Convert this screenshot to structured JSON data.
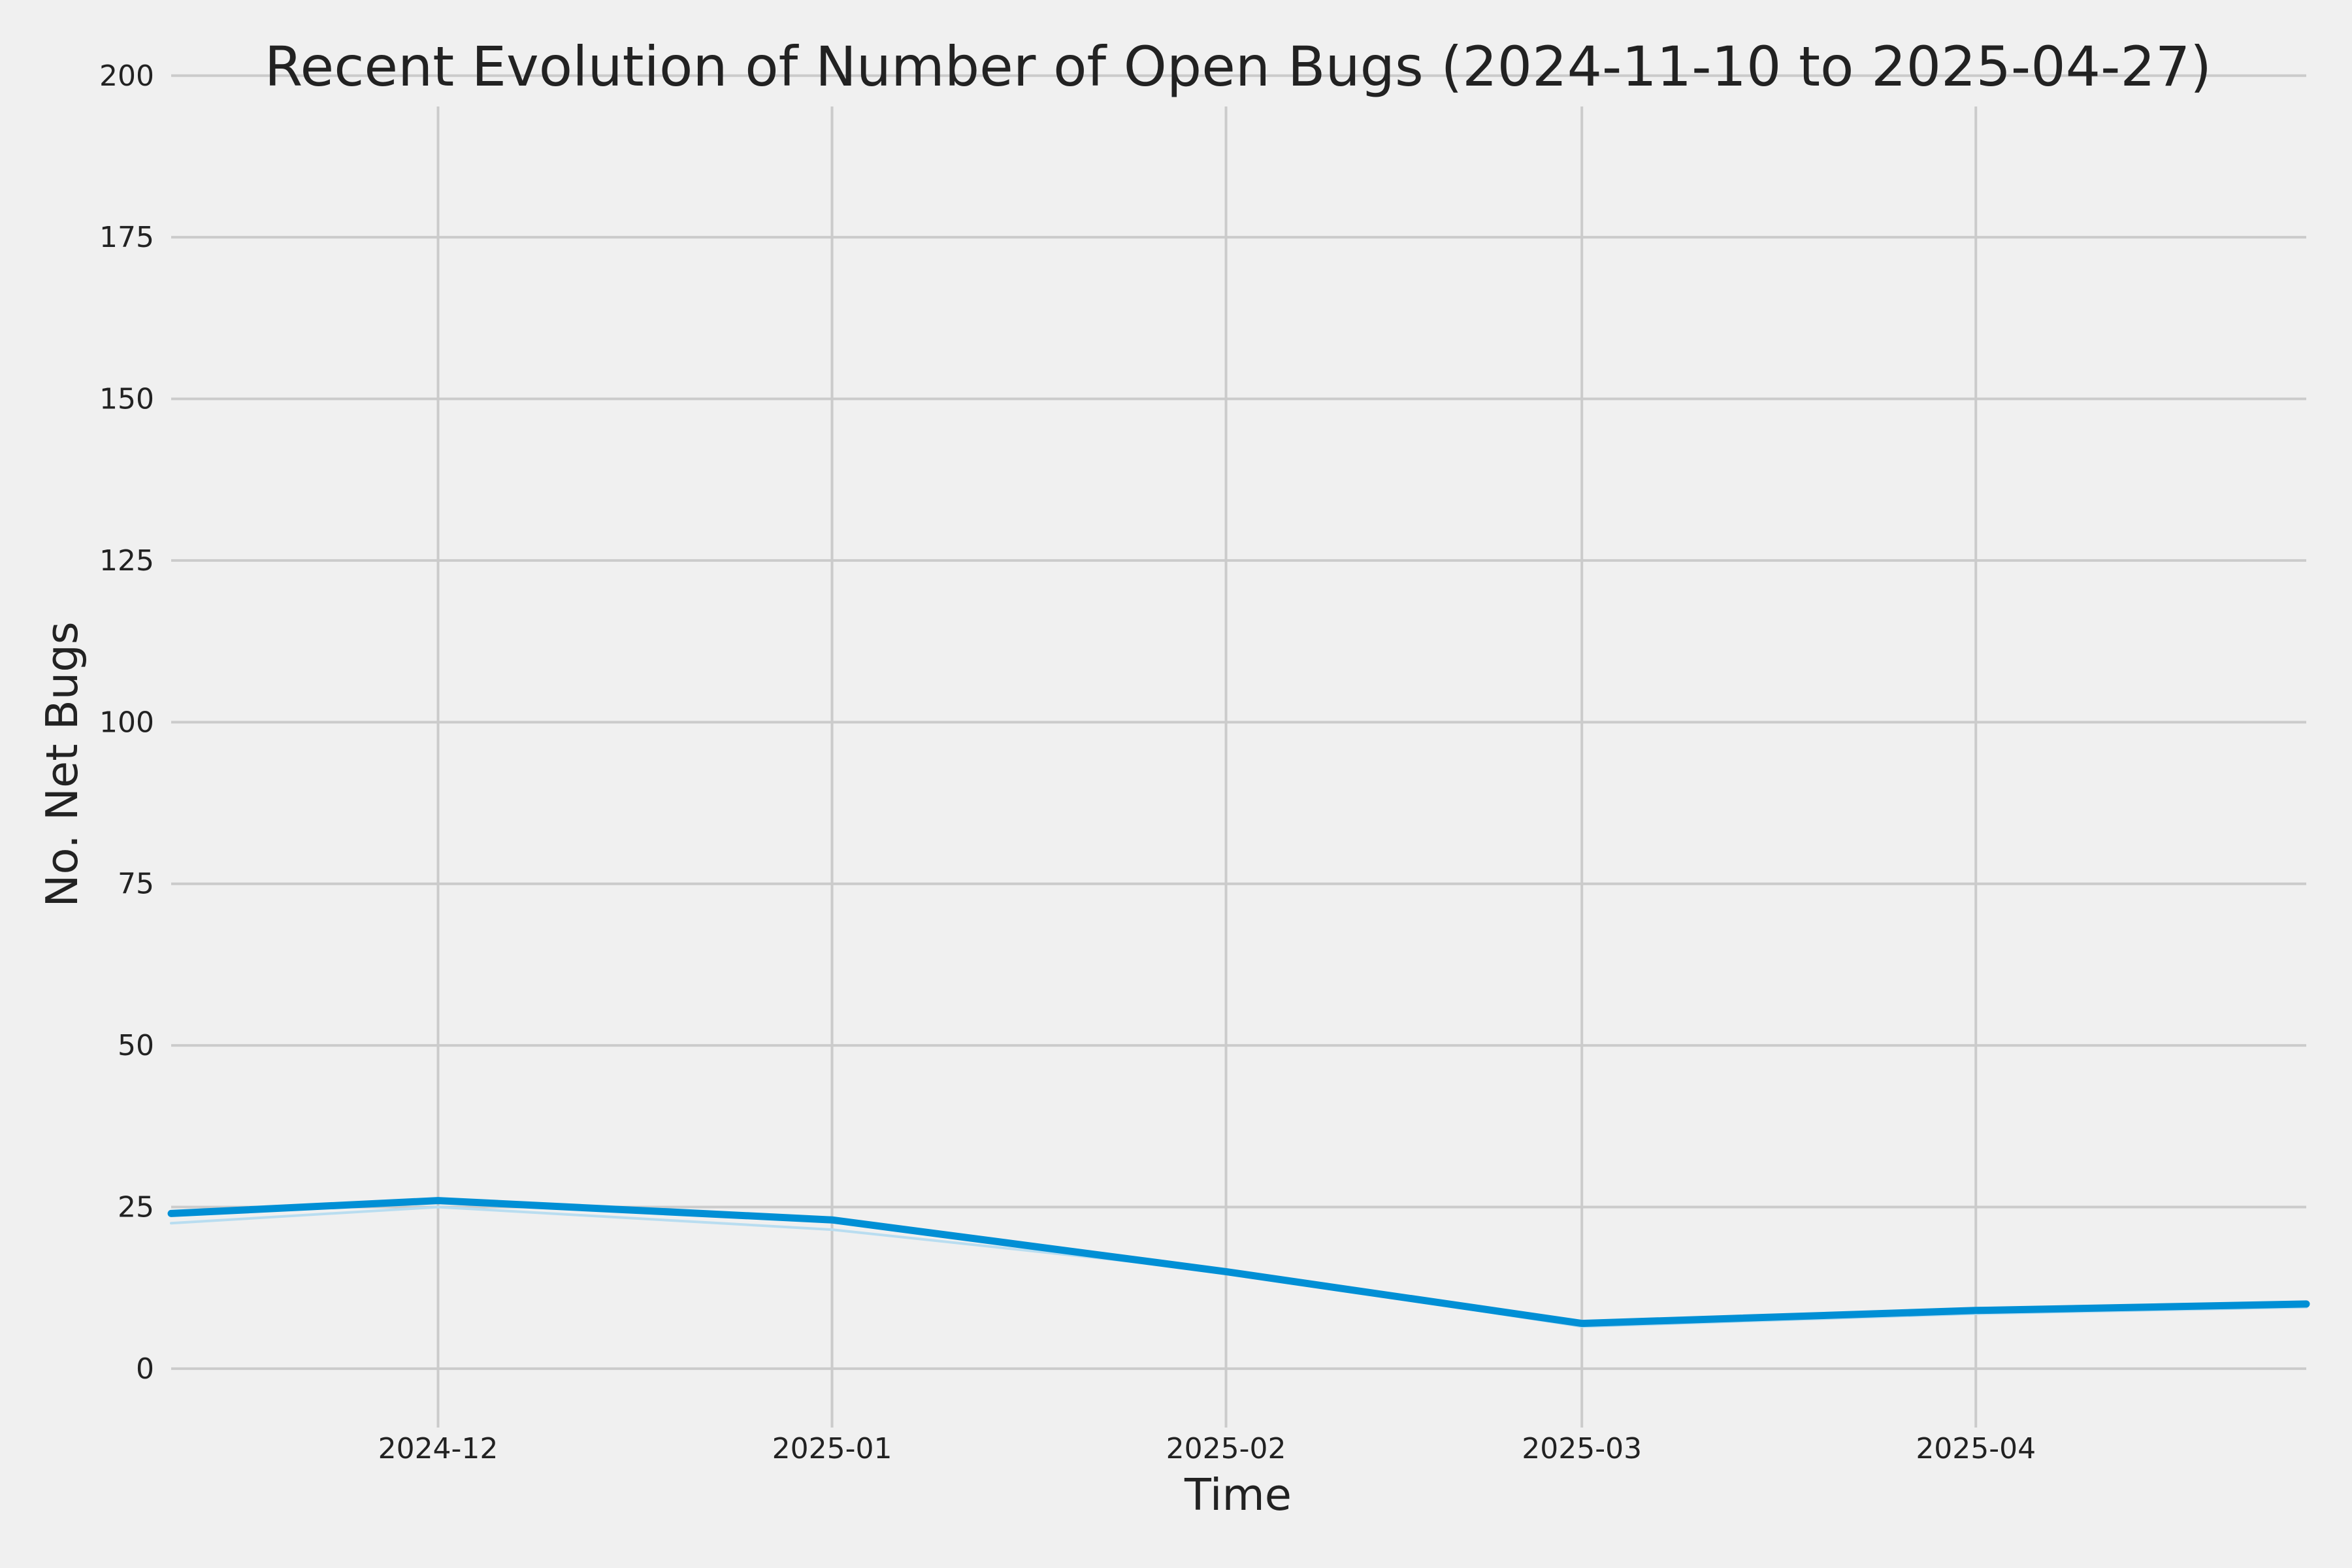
{
  "chart_data": {
    "type": "line",
    "title": "Recent Evolution of Number of Open Bugs (2024-11-10 to 2025-04-27)",
    "xlabel": "Time",
    "ylabel": "No. Net Bugs",
    "xlim": [
      "2024-11-10",
      "2025-04-27"
    ],
    "ylim": [
      -8,
      202
    ],
    "grid": true,
    "x_ticks": [
      "2024-12",
      "2025-01",
      "2025-02",
      "2025-03",
      "2025-04"
    ],
    "y_ticks": [
      0,
      25,
      50,
      75,
      100,
      125,
      150,
      175,
      200
    ],
    "series": [
      {
        "color": "#008fd5",
        "x": [
          "2024-11-10",
          "2024-12-01",
          "2025-01-01",
          "2025-02-01",
          "2025-03-01",
          "2025-04-01",
          "2025-04-27"
        ],
        "values": [
          24,
          26,
          23,
          15,
          7,
          9,
          10
        ]
      },
      {
        "color": "#b9ddf0",
        "x": [
          "2024-11-10",
          "2024-12-01",
          "2025-01-01",
          "2025-02-01",
          "2025-03-01",
          "2025-04-01",
          "2025-04-27"
        ],
        "values": [
          22.5,
          25,
          21.5,
          15,
          6.5,
          8.5,
          9.5
        ]
      }
    ]
  }
}
